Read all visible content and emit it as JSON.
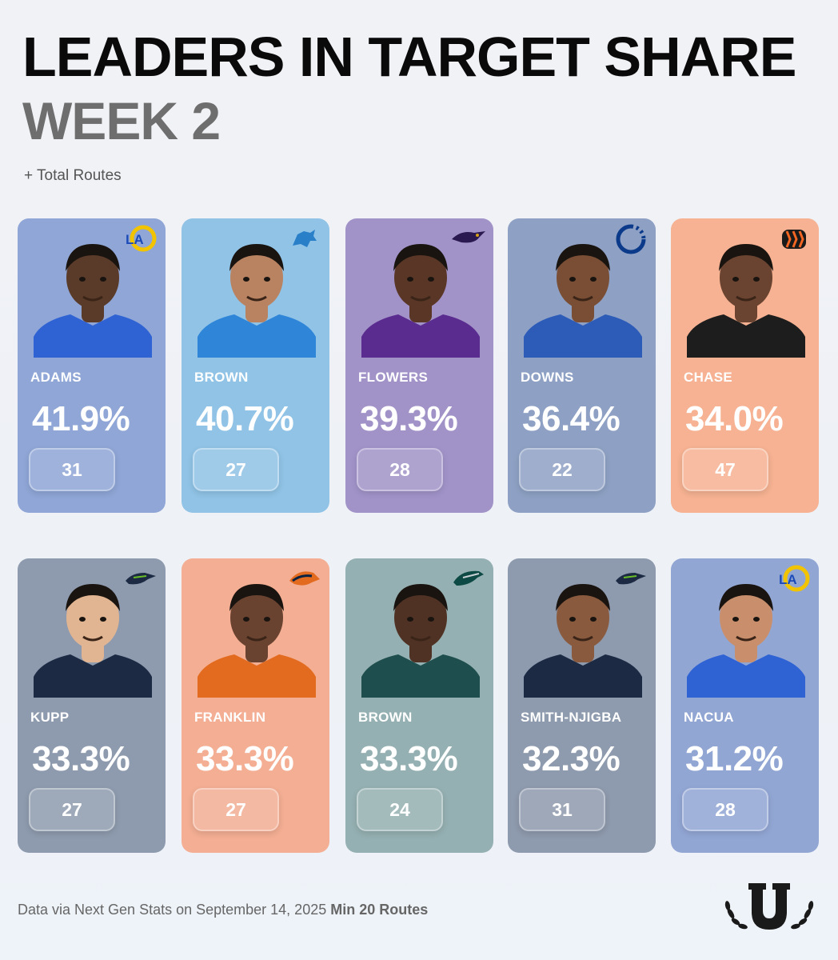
{
  "header": {
    "title": "LEADERS IN TARGET SHARE",
    "subtitle": "WEEK 2",
    "legend": "+ Total Routes"
  },
  "players": [
    {
      "name": "ADAMS",
      "target_share": "41.9%",
      "routes": "31",
      "team_logo": "rams-logo",
      "card_color": "#8fa6d6",
      "skin": "#5a3a28",
      "jersey": "#2f63d4"
    },
    {
      "name": "BROWN",
      "target_share": "40.7%",
      "routes": "27",
      "team_logo": "lions-logo",
      "card_color": "#90c3e6",
      "skin": "#b98362",
      "jersey": "#2f86d8"
    },
    {
      "name": "FLOWERS",
      "target_share": "39.3%",
      "routes": "28",
      "team_logo": "ravens-logo",
      "card_color": "#a193c8",
      "skin": "#5a3626",
      "jersey": "#5b2c8f"
    },
    {
      "name": "DOWNS",
      "target_share": "36.4%",
      "routes": "22",
      "team_logo": "colts-logo",
      "card_color": "#8ea1c4",
      "skin": "#7a4e34",
      "jersey": "#2c5bb8"
    },
    {
      "name": "CHASE",
      "target_share": "34.0%",
      "routes": "47",
      "team_logo": "bengals-logo",
      "card_color": "#f6b292",
      "skin": "#6a4430",
      "jersey": "#1d1d1d"
    },
    {
      "name": "KUPP",
      "target_share": "33.3%",
      "routes": "27",
      "team_logo": "seahawks-logo",
      "card_color": "#8e9bae",
      "skin": "#e2b592",
      "jersey": "#1c2a44"
    },
    {
      "name": "FRANKLIN",
      "target_share": "33.3%",
      "routes": "27",
      "team_logo": "broncos-logo",
      "card_color": "#f3ae93",
      "skin": "#6a4230",
      "jersey": "#e36b1f"
    },
    {
      "name": "BROWN",
      "target_share": "33.3%",
      "routes": "24",
      "team_logo": "eagles-logo",
      "card_color": "#95b0b2",
      "skin": "#4f3224",
      "jersey": "#1e4f4e"
    },
    {
      "name": "SMITH-NJIGBA",
      "target_share": "32.3%",
      "routes": "31",
      "team_logo": "seahawks-logo",
      "card_color": "#8e9aad",
      "skin": "#8a5a3e",
      "jersey": "#1c2a44"
    },
    {
      "name": "NACUA",
      "target_share": "31.2%",
      "routes": "28",
      "team_logo": "rams-logo",
      "card_color": "#92a6d4",
      "skin": "#c98f6c",
      "jersey": "#2f63d4"
    }
  ],
  "footer": {
    "source": "Data via Next Gen Stats on September 14, 2025",
    "note": "Min 20 Routes"
  },
  "brand_logo": "underdog-u-laurel-logo"
}
